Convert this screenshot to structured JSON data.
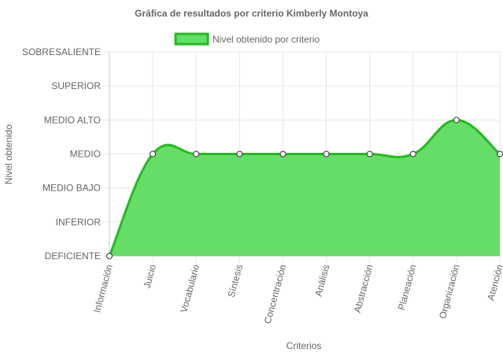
{
  "chart_data": {
    "type": "area",
    "title": "Gráfica de resultados por criterio Kimberly Montoya",
    "xlabel": "Criterios",
    "ylabel": "Nivel obtenido",
    "categories": [
      "Información",
      "Juicio",
      "Vocabulario",
      "Síntesis",
      "Concentración",
      "Análisis",
      "Abstracción",
      "Planeación",
      "Organización",
      "Atención"
    ],
    "y_levels": [
      "DEFICIENTE",
      "INFERIOR",
      "MEDIO BAJO",
      "MEDIO",
      "MEDIO ALTO",
      "SUPERIOR",
      "SOBRESALIENTE"
    ],
    "ylim": [
      0,
      6
    ],
    "series": [
      {
        "name": "Nivel obtenido por criterio",
        "values": [
          0,
          3,
          3,
          3,
          3,
          3,
          3,
          3,
          4,
          3
        ]
      }
    ],
    "legend_position": "top-center",
    "grid": true,
    "colors": {
      "fill": "#66dd66",
      "line": "#22bb22",
      "point_fill": "#ffffff",
      "point_stroke": "#333333",
      "grid": "#e6e6e6",
      "axis_text": "#666666"
    }
  }
}
